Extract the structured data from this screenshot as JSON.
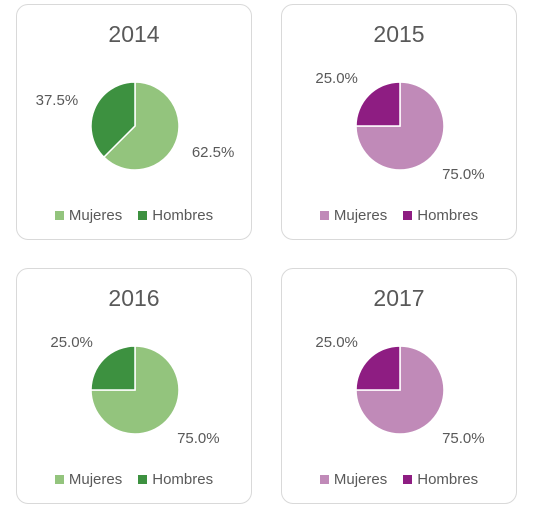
{
  "chart_data": [
    {
      "type": "pie",
      "title": "2014",
      "labels": [
        "Mujeres",
        "Hombres"
      ],
      "values": [
        62.5,
        37.5
      ],
      "data_labels": [
        "62.5%",
        "37.5%"
      ],
      "colors": [
        "#93c47d",
        "#3d9140"
      ],
      "legend": "bottom"
    },
    {
      "type": "pie",
      "title": "2015",
      "labels": [
        "Mujeres",
        "Hombres"
      ],
      "values": [
        75.0,
        25.0
      ],
      "data_labels": [
        "75.0%",
        "25.0%"
      ],
      "colors": [
        "#c08ab8",
        "#8e1d82"
      ],
      "legend": "bottom"
    },
    {
      "type": "pie",
      "title": "2016",
      "labels": [
        "Mujeres",
        "Hombres"
      ],
      "values": [
        75.0,
        25.0
      ],
      "data_labels": [
        "75.0%",
        "25.0%"
      ],
      "colors": [
        "#93c47d",
        "#3d9140"
      ],
      "legend": "bottom"
    },
    {
      "type": "pie",
      "title": "2017",
      "labels": [
        "Mujeres",
        "Hombres"
      ],
      "values": [
        75.0,
        25.0
      ],
      "data_labels": [
        "75.0%",
        "25.0%"
      ],
      "colors": [
        "#c08ab8",
        "#8e1d82"
      ],
      "legend": "bottom"
    }
  ]
}
